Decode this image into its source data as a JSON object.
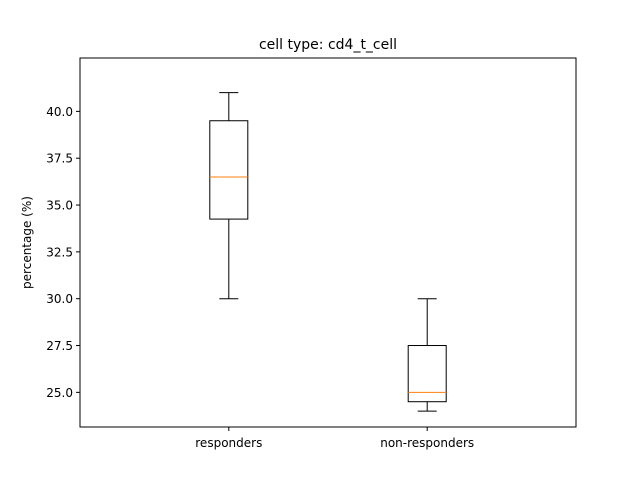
{
  "chart_data": {
    "type": "box",
    "title": "cell type: cd4_t_cell",
    "xlabel": "",
    "ylabel": "percentage (%)",
    "ylim": [
      23.15,
      42.85
    ],
    "yticks": [
      25.0,
      27.5,
      30.0,
      32.5,
      35.0,
      37.5,
      40.0
    ],
    "ytick_labels": [
      "25.0",
      "27.5",
      "30.0",
      "32.5",
      "35.0",
      "37.5",
      "40.0"
    ],
    "categories": [
      "responders",
      "non-responders"
    ],
    "boxes": [
      {
        "category": "responders",
        "whisker_low": 30.0,
        "q1": 34.25,
        "median": 36.5,
        "q3": 39.5,
        "whisker_high": 41.0
      },
      {
        "category": "non-responders",
        "whisker_low": 24.0,
        "q1": 24.5,
        "median": 25.0,
        "q3": 27.5,
        "whisker_high": 30.0
      }
    ],
    "grid": false,
    "colors": {
      "box": "#000000",
      "median": "#ff7f0e",
      "axes": "#000000"
    }
  }
}
